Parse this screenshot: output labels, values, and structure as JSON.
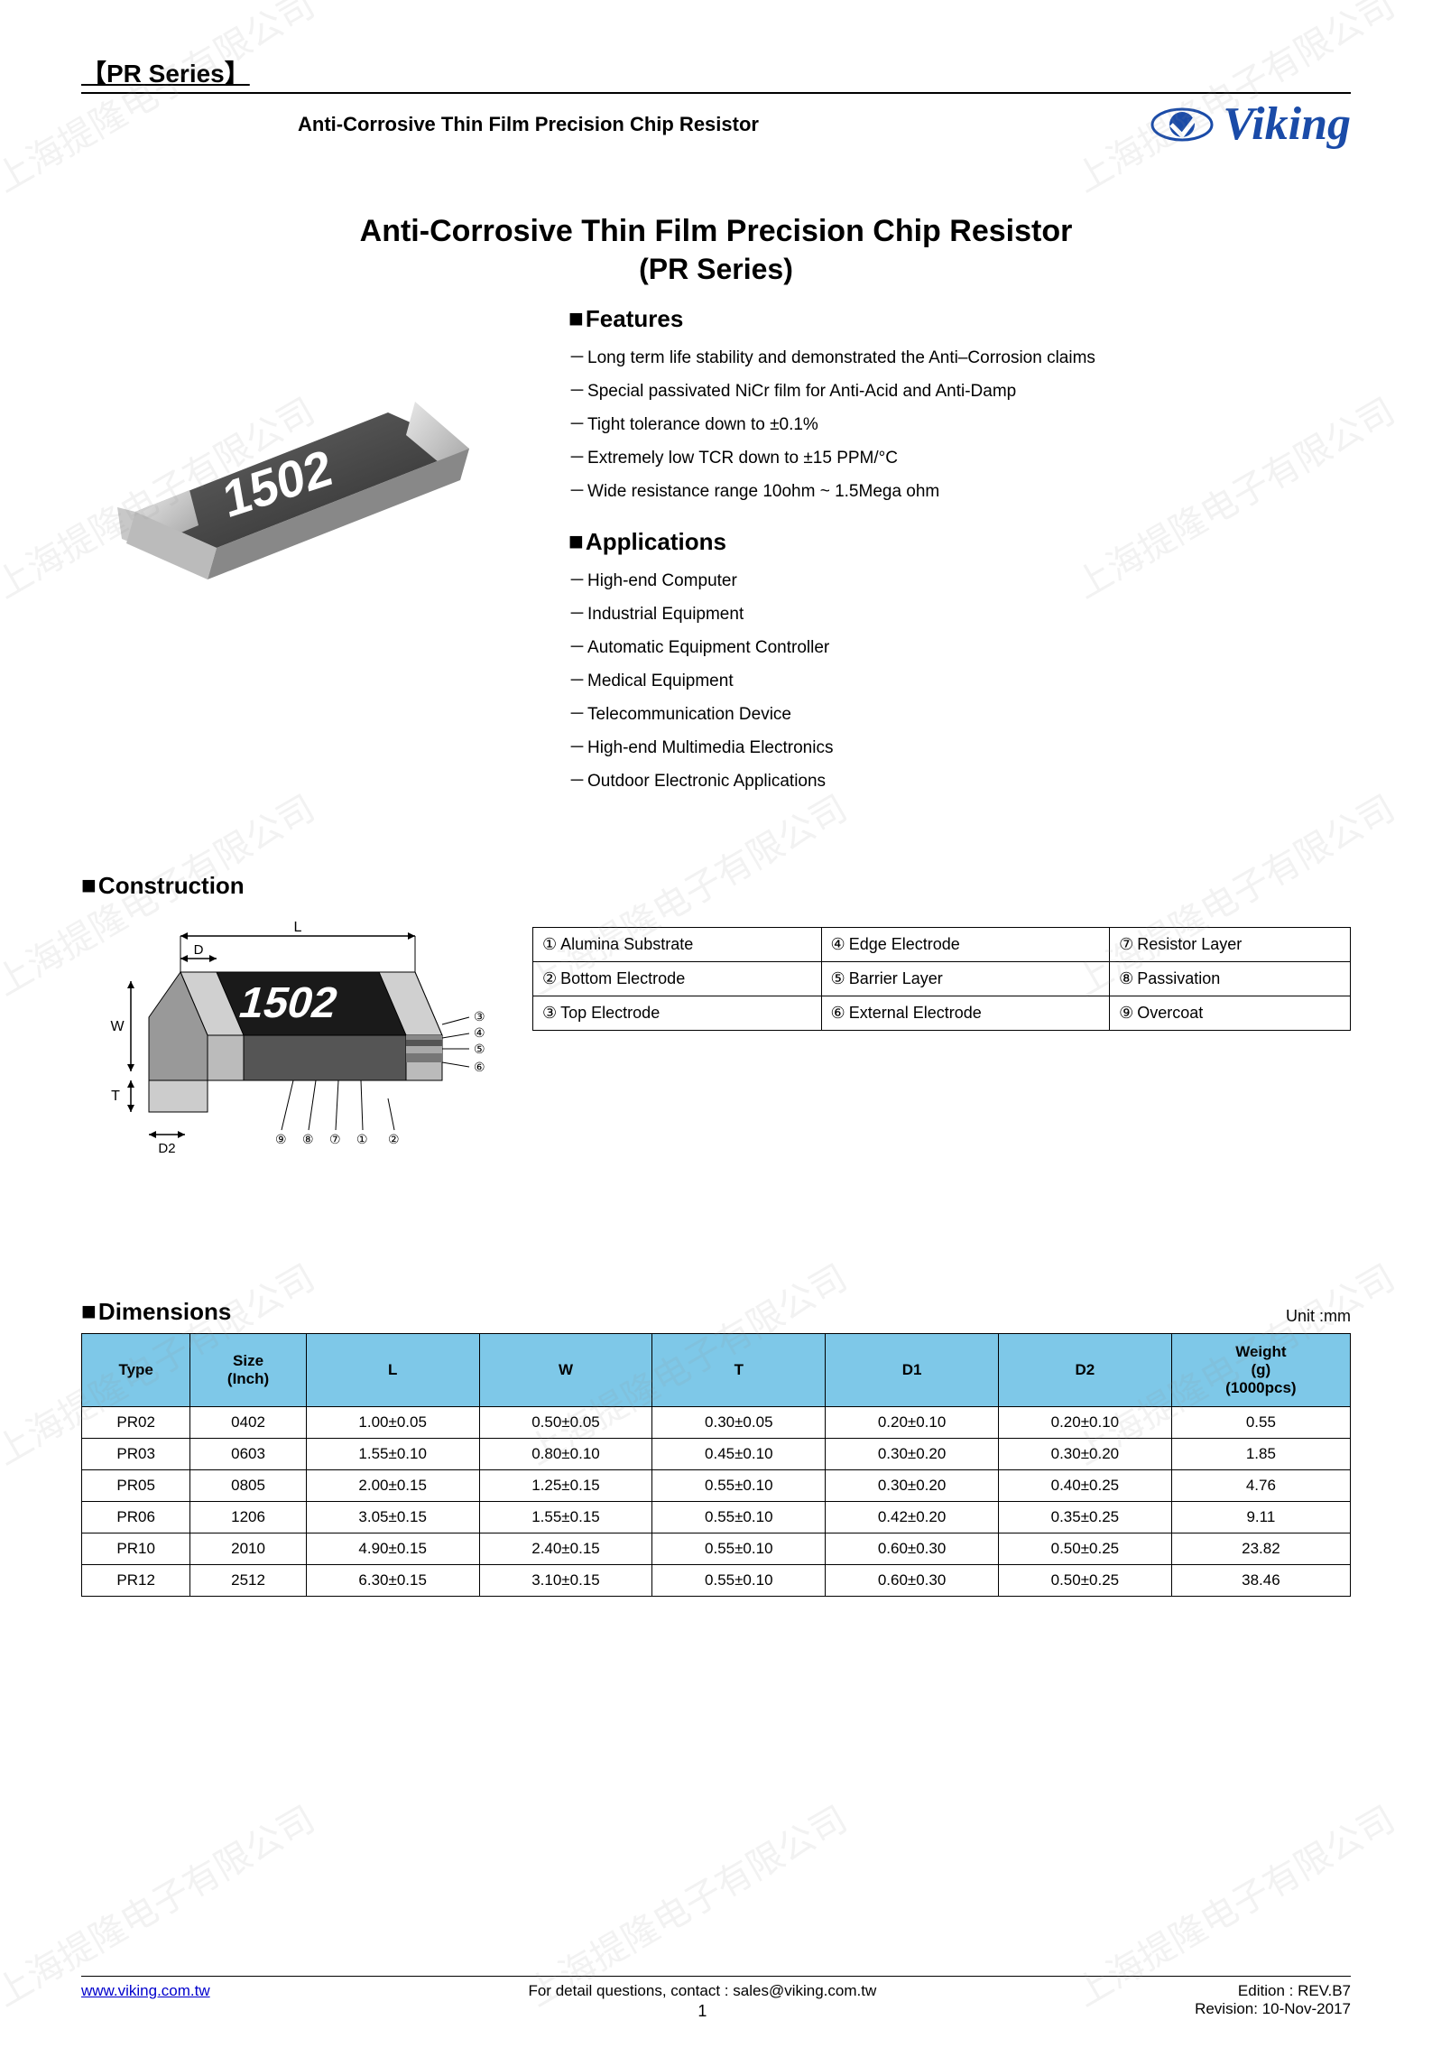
{
  "header": {
    "series_label": "【PR Series】",
    "subtitle": "Anti-Corrosive Thin Film Precision Chip Resistor",
    "logo_text": "Viking",
    "logo_color": "#1a4ba8"
  },
  "watermark_text": "上海提隆电子有限公司",
  "title": {
    "main": "Anti-Corrosive Thin Film Precision Chip Resistor",
    "sub": "(PR Series)"
  },
  "chip_label": "1502",
  "features": {
    "heading": "Features",
    "items": [
      "Long term life stability and demonstrated the Anti–Corrosion claims",
      "Special passivated NiCr film for Anti-Acid and Anti-Damp",
      "Tight tolerance down to ±0.1%",
      "Extremely low TCR down to ±15 PPM/°C",
      "Wide resistance range 10ohm ~ 1.5Mega ohm"
    ]
  },
  "applications": {
    "heading": "Applications",
    "items": [
      "High-end Computer",
      "Industrial Equipment",
      "Automatic Equipment Controller",
      "Medical Equipment",
      "Telecommunication Device",
      "High-end Multimedia Electronics",
      "Outdoor Electronic Applications"
    ]
  },
  "construction": {
    "heading": "Construction",
    "diagram_label": "1502",
    "dim_labels": {
      "L": "L",
      "W": "W",
      "T": "T",
      "D": "D",
      "D2": "D2"
    },
    "parts": [
      {
        "num": "①",
        "name": "Alumina Substrate"
      },
      {
        "num": "②",
        "name": "Bottom Electrode"
      },
      {
        "num": "③",
        "name": "Top Electrode"
      },
      {
        "num": "④",
        "name": "Edge Electrode"
      },
      {
        "num": "⑤",
        "name": "Barrier Layer"
      },
      {
        "num": "⑥",
        "name": "External Electrode"
      },
      {
        "num": "⑦",
        "name": "Resistor Layer"
      },
      {
        "num": "⑧",
        "name": "Passivation"
      },
      {
        "num": "⑨",
        "name": "Overcoat"
      }
    ]
  },
  "dimensions": {
    "heading": "Dimensions",
    "unit": "Unit :mm",
    "columns": [
      "Type",
      "Size\n(Inch)",
      "L",
      "W",
      "T",
      "D1",
      "D2",
      "Weight\n(g)\n(1000pcs)"
    ],
    "rows": [
      [
        "PR02",
        "0402",
        "1.00±0.05",
        "0.50±0.05",
        "0.30±0.05",
        "0.20±0.10",
        "0.20±0.10",
        "0.55"
      ],
      [
        "PR03",
        "0603",
        "1.55±0.10",
        "0.80±0.10",
        "0.45±0.10",
        "0.30±0.20",
        "0.30±0.20",
        "1.85"
      ],
      [
        "PR05",
        "0805",
        "2.00±0.15",
        "1.25±0.15",
        "0.55±0.10",
        "0.30±0.20",
        "0.40±0.25",
        "4.76"
      ],
      [
        "PR06",
        "1206",
        "3.05±0.15",
        "1.55±0.15",
        "0.55±0.10",
        "0.42±0.20",
        "0.35±0.25",
        "9.11"
      ],
      [
        "PR10",
        "2010",
        "4.90±0.15",
        "2.40±0.15",
        "0.55±0.10",
        "0.60±0.30",
        "0.50±0.25",
        "23.82"
      ],
      [
        "PR12",
        "2512",
        "6.30±0.15",
        "3.10±0.15",
        "0.55±0.10",
        "0.60±0.30",
        "0.50±0.25",
        "38.46"
      ]
    ],
    "header_bg": "#7ec8e8"
  },
  "footer": {
    "url": "www.viking.com.tw",
    "contact": "For detail questions, contact : sales@viking.com.tw",
    "edition": "Edition : REV.B7",
    "revision": "Revision: 10-Nov-2017",
    "page": "1"
  }
}
